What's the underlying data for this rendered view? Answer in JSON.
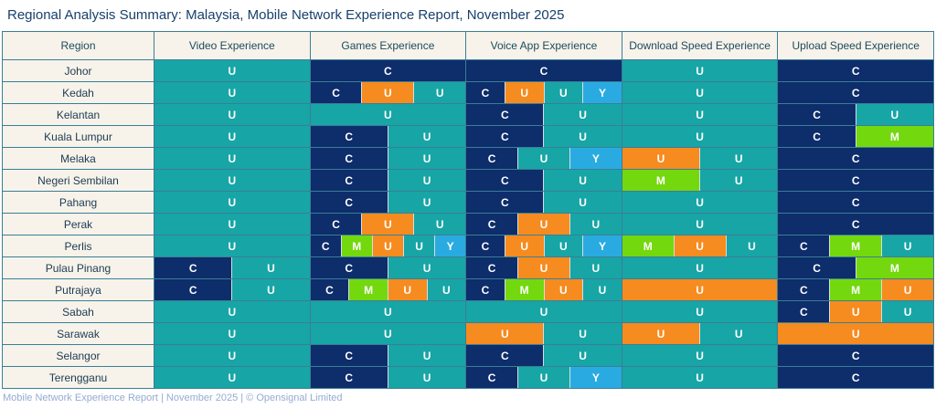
{
  "title": "Regional Analysis Summary: Malaysia, Mobile Network Experience Report, November 2025",
  "footer": "Mobile Network Experience Report | November 2025 | © Opensignal Limited",
  "operator_colors": {
    "navy": "#0d2d6b",
    "teal": "#18a5a5",
    "orange": "#f68b1f",
    "green": "#73d80e",
    "lightblue": "#29abe2"
  },
  "chart_data": {
    "type": "table",
    "title": "Regional Analysis Summary: Malaysia, Mobile Network Experience Report, November 2025",
    "columns": [
      "Region",
      "Video Experience",
      "Games Experience",
      "Voice App Experience",
      "Download Speed Experience",
      "Upload Speed Experience"
    ],
    "rows": [
      {
        "region": "Johor",
        "cells": [
          [
            {
              "label": "U",
              "color": "teal"
            }
          ],
          [
            {
              "label": "C",
              "color": "navy"
            }
          ],
          [
            {
              "label": "C",
              "color": "navy"
            }
          ],
          [
            {
              "label": "U",
              "color": "teal"
            }
          ],
          [
            {
              "label": "C",
              "color": "navy"
            }
          ]
        ]
      },
      {
        "region": "Kedah",
        "cells": [
          [
            {
              "label": "U",
              "color": "teal"
            }
          ],
          [
            {
              "label": "C",
              "color": "navy"
            },
            {
              "label": "U",
              "color": "orange"
            },
            {
              "label": "U",
              "color": "teal"
            }
          ],
          [
            {
              "label": "C",
              "color": "navy"
            },
            {
              "label": "U",
              "color": "orange"
            },
            {
              "label": "U",
              "color": "teal"
            },
            {
              "label": "Y",
              "color": "lightblue"
            }
          ],
          [
            {
              "label": "U",
              "color": "teal"
            }
          ],
          [
            {
              "label": "C",
              "color": "navy"
            }
          ]
        ]
      },
      {
        "region": "Kelantan",
        "cells": [
          [
            {
              "label": "U",
              "color": "teal"
            }
          ],
          [
            {
              "label": "U",
              "color": "teal"
            }
          ],
          [
            {
              "label": "C",
              "color": "navy"
            },
            {
              "label": "U",
              "color": "teal"
            }
          ],
          [
            {
              "label": "U",
              "color": "teal"
            }
          ],
          [
            {
              "label": "C",
              "color": "navy"
            },
            {
              "label": "U",
              "color": "teal"
            }
          ]
        ]
      },
      {
        "region": "Kuala Lumpur",
        "cells": [
          [
            {
              "label": "U",
              "color": "teal"
            }
          ],
          [
            {
              "label": "C",
              "color": "navy"
            },
            {
              "label": "U",
              "color": "teal"
            }
          ],
          [
            {
              "label": "C",
              "color": "navy"
            },
            {
              "label": "U",
              "color": "teal"
            }
          ],
          [
            {
              "label": "U",
              "color": "teal"
            }
          ],
          [
            {
              "label": "C",
              "color": "navy"
            },
            {
              "label": "M",
              "color": "green"
            }
          ]
        ]
      },
      {
        "region": "Melaka",
        "cells": [
          [
            {
              "label": "U",
              "color": "teal"
            }
          ],
          [
            {
              "label": "C",
              "color": "navy"
            },
            {
              "label": "U",
              "color": "teal"
            }
          ],
          [
            {
              "label": "C",
              "color": "navy"
            },
            {
              "label": "U",
              "color": "teal"
            },
            {
              "label": "Y",
              "color": "lightblue"
            }
          ],
          [
            {
              "label": "U",
              "color": "orange"
            },
            {
              "label": "U",
              "color": "teal"
            }
          ],
          [
            {
              "label": "C",
              "color": "navy"
            }
          ]
        ]
      },
      {
        "region": "Negeri Sembilan",
        "cells": [
          [
            {
              "label": "U",
              "color": "teal"
            }
          ],
          [
            {
              "label": "C",
              "color": "navy"
            },
            {
              "label": "U",
              "color": "teal"
            }
          ],
          [
            {
              "label": "C",
              "color": "navy"
            },
            {
              "label": "U",
              "color": "teal"
            }
          ],
          [
            {
              "label": "M",
              "color": "green"
            },
            {
              "label": "U",
              "color": "teal"
            }
          ],
          [
            {
              "label": "C",
              "color": "navy"
            }
          ]
        ]
      },
      {
        "region": "Pahang",
        "cells": [
          [
            {
              "label": "U",
              "color": "teal"
            }
          ],
          [
            {
              "label": "C",
              "color": "navy"
            },
            {
              "label": "U",
              "color": "teal"
            }
          ],
          [
            {
              "label": "C",
              "color": "navy"
            },
            {
              "label": "U",
              "color": "teal"
            }
          ],
          [
            {
              "label": "U",
              "color": "teal"
            }
          ],
          [
            {
              "label": "C",
              "color": "navy"
            }
          ]
        ]
      },
      {
        "region": "Perak",
        "cells": [
          [
            {
              "label": "U",
              "color": "teal"
            }
          ],
          [
            {
              "label": "C",
              "color": "navy"
            },
            {
              "label": "U",
              "color": "orange"
            },
            {
              "label": "U",
              "color": "teal"
            }
          ],
          [
            {
              "label": "C",
              "color": "navy"
            },
            {
              "label": "U",
              "color": "orange"
            },
            {
              "label": "U",
              "color": "teal"
            }
          ],
          [
            {
              "label": "U",
              "color": "teal"
            }
          ],
          [
            {
              "label": "C",
              "color": "navy"
            }
          ]
        ]
      },
      {
        "region": "Perlis",
        "cells": [
          [
            {
              "label": "U",
              "color": "teal"
            }
          ],
          [
            {
              "label": "C",
              "color": "navy"
            },
            {
              "label": "M",
              "color": "green"
            },
            {
              "label": "U",
              "color": "orange"
            },
            {
              "label": "U",
              "color": "teal"
            },
            {
              "label": "Y",
              "color": "lightblue"
            }
          ],
          [
            {
              "label": "C",
              "color": "navy"
            },
            {
              "label": "U",
              "color": "orange"
            },
            {
              "label": "U",
              "color": "teal"
            },
            {
              "label": "Y",
              "color": "lightblue"
            }
          ],
          [
            {
              "label": "M",
              "color": "green"
            },
            {
              "label": "U",
              "color": "orange"
            },
            {
              "label": "U",
              "color": "teal"
            }
          ],
          [
            {
              "label": "C",
              "color": "navy"
            },
            {
              "label": "M",
              "color": "green"
            },
            {
              "label": "U",
              "color": "teal"
            }
          ]
        ]
      },
      {
        "region": "Pulau Pinang",
        "cells": [
          [
            {
              "label": "C",
              "color": "navy"
            },
            {
              "label": "U",
              "color": "teal"
            }
          ],
          [
            {
              "label": "C",
              "color": "navy"
            },
            {
              "label": "U",
              "color": "teal"
            }
          ],
          [
            {
              "label": "C",
              "color": "navy"
            },
            {
              "label": "U",
              "color": "orange"
            },
            {
              "label": "U",
              "color": "teal"
            }
          ],
          [
            {
              "label": "U",
              "color": "teal"
            }
          ],
          [
            {
              "label": "C",
              "color": "navy"
            },
            {
              "label": "M",
              "color": "green"
            }
          ]
        ]
      },
      {
        "region": "Putrajaya",
        "cells": [
          [
            {
              "label": "C",
              "color": "navy"
            },
            {
              "label": "U",
              "color": "teal"
            }
          ],
          [
            {
              "label": "C",
              "color": "navy"
            },
            {
              "label": "M",
              "color": "green"
            },
            {
              "label": "U",
              "color": "orange"
            },
            {
              "label": "U",
              "color": "teal"
            }
          ],
          [
            {
              "label": "C",
              "color": "navy"
            },
            {
              "label": "M",
              "color": "green"
            },
            {
              "label": "U",
              "color": "orange"
            },
            {
              "label": "U",
              "color": "teal"
            }
          ],
          [
            {
              "label": "U",
              "color": "orange"
            }
          ],
          [
            {
              "label": "C",
              "color": "navy"
            },
            {
              "label": "M",
              "color": "green"
            },
            {
              "label": "U",
              "color": "orange"
            }
          ]
        ]
      },
      {
        "region": "Sabah",
        "cells": [
          [
            {
              "label": "U",
              "color": "teal"
            }
          ],
          [
            {
              "label": "U",
              "color": "teal"
            }
          ],
          [
            {
              "label": "U",
              "color": "teal"
            }
          ],
          [
            {
              "label": "U",
              "color": "teal"
            }
          ],
          [
            {
              "label": "C",
              "color": "navy"
            },
            {
              "label": "U",
              "color": "orange"
            },
            {
              "label": "U",
              "color": "teal"
            }
          ]
        ]
      },
      {
        "region": "Sarawak",
        "cells": [
          [
            {
              "label": "U",
              "color": "teal"
            }
          ],
          [
            {
              "label": "U",
              "color": "teal"
            }
          ],
          [
            {
              "label": "U",
              "color": "orange"
            },
            {
              "label": "U",
              "color": "teal"
            }
          ],
          [
            {
              "label": "U",
              "color": "orange"
            },
            {
              "label": "U",
              "color": "teal"
            }
          ],
          [
            {
              "label": "U",
              "color": "orange"
            }
          ]
        ]
      },
      {
        "region": "Selangor",
        "cells": [
          [
            {
              "label": "U",
              "color": "teal"
            }
          ],
          [
            {
              "label": "C",
              "color": "navy"
            },
            {
              "label": "U",
              "color": "teal"
            }
          ],
          [
            {
              "label": "C",
              "color": "navy"
            },
            {
              "label": "U",
              "color": "teal"
            }
          ],
          [
            {
              "label": "U",
              "color": "teal"
            }
          ],
          [
            {
              "label": "C",
              "color": "navy"
            }
          ]
        ]
      },
      {
        "region": "Terengganu",
        "cells": [
          [
            {
              "label": "U",
              "color": "teal"
            }
          ],
          [
            {
              "label": "C",
              "color": "navy"
            },
            {
              "label": "U",
              "color": "teal"
            }
          ],
          [
            {
              "label": "C",
              "color": "navy"
            },
            {
              "label": "U",
              "color": "teal"
            },
            {
              "label": "Y",
              "color": "lightblue"
            }
          ],
          [
            {
              "label": "U",
              "color": "teal"
            }
          ],
          [
            {
              "label": "C",
              "color": "navy"
            }
          ]
        ]
      }
    ]
  }
}
